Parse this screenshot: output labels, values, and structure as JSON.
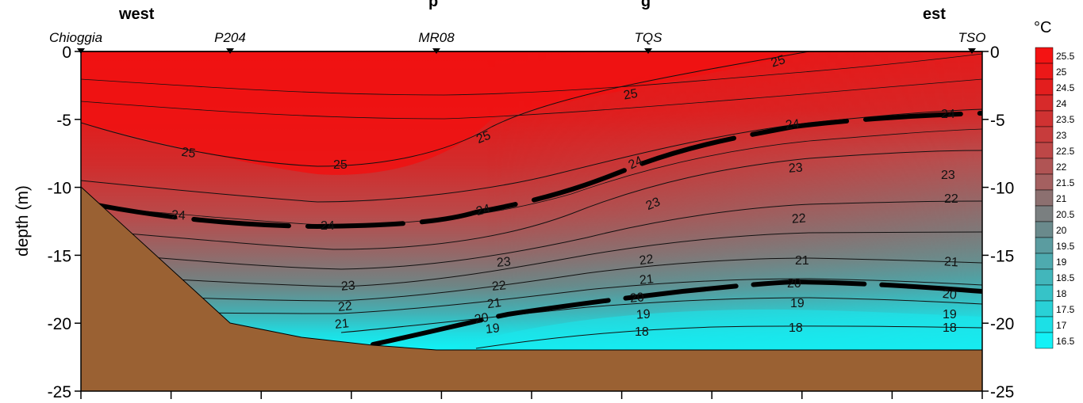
{
  "header": {
    "west_label": "west",
    "east_label": "est",
    "title_fragment": "p                                              g"
  },
  "chart_data": {
    "type": "heatmap",
    "title": "",
    "xlabel": "",
    "ylabel": "depth (m)",
    "ylim": [
      -25,
      0
    ],
    "yticks": [
      "0",
      "-5",
      "-10",
      "-15",
      "-20",
      "-25"
    ],
    "yticks_right": [
      "0",
      "-5",
      "-10",
      "-15",
      "-20",
      "-25"
    ],
    "stations": [
      "Chioggia",
      "P204",
      "MR08",
      "TQS",
      "TSO"
    ],
    "unit": "°C",
    "colorbar_labels": [
      "25.5",
      "25",
      "24.5",
      "24",
      "23.5",
      "23",
      "22.5",
      "22",
      "21.5",
      "21",
      "20.5",
      "20",
      "19.5",
      "19",
      "18.5",
      "18",
      "17.5",
      "17",
      "16.5"
    ],
    "colorbar_colors": [
      "#f41313",
      "#ec1818",
      "#e31e1e",
      "#d72a2a",
      "#cf3232",
      "#c73c3c",
      "#bd4747",
      "#b05454",
      "#a46060",
      "#8c7070",
      "#7a7f80",
      "#6a8a8c",
      "#5b9ca0",
      "#4eaaaf",
      "#42b6bb",
      "#36c3c8",
      "#29d1d6",
      "#1ce0e6",
      "#13f1f6"
    ],
    "contour_labels": [
      "25",
      "24",
      "23",
      "22",
      "21",
      "20",
      "19",
      "18"
    ],
    "bold_isotherms": [
      "24",
      "20"
    ],
    "bottom_color": "#9a6133"
  }
}
